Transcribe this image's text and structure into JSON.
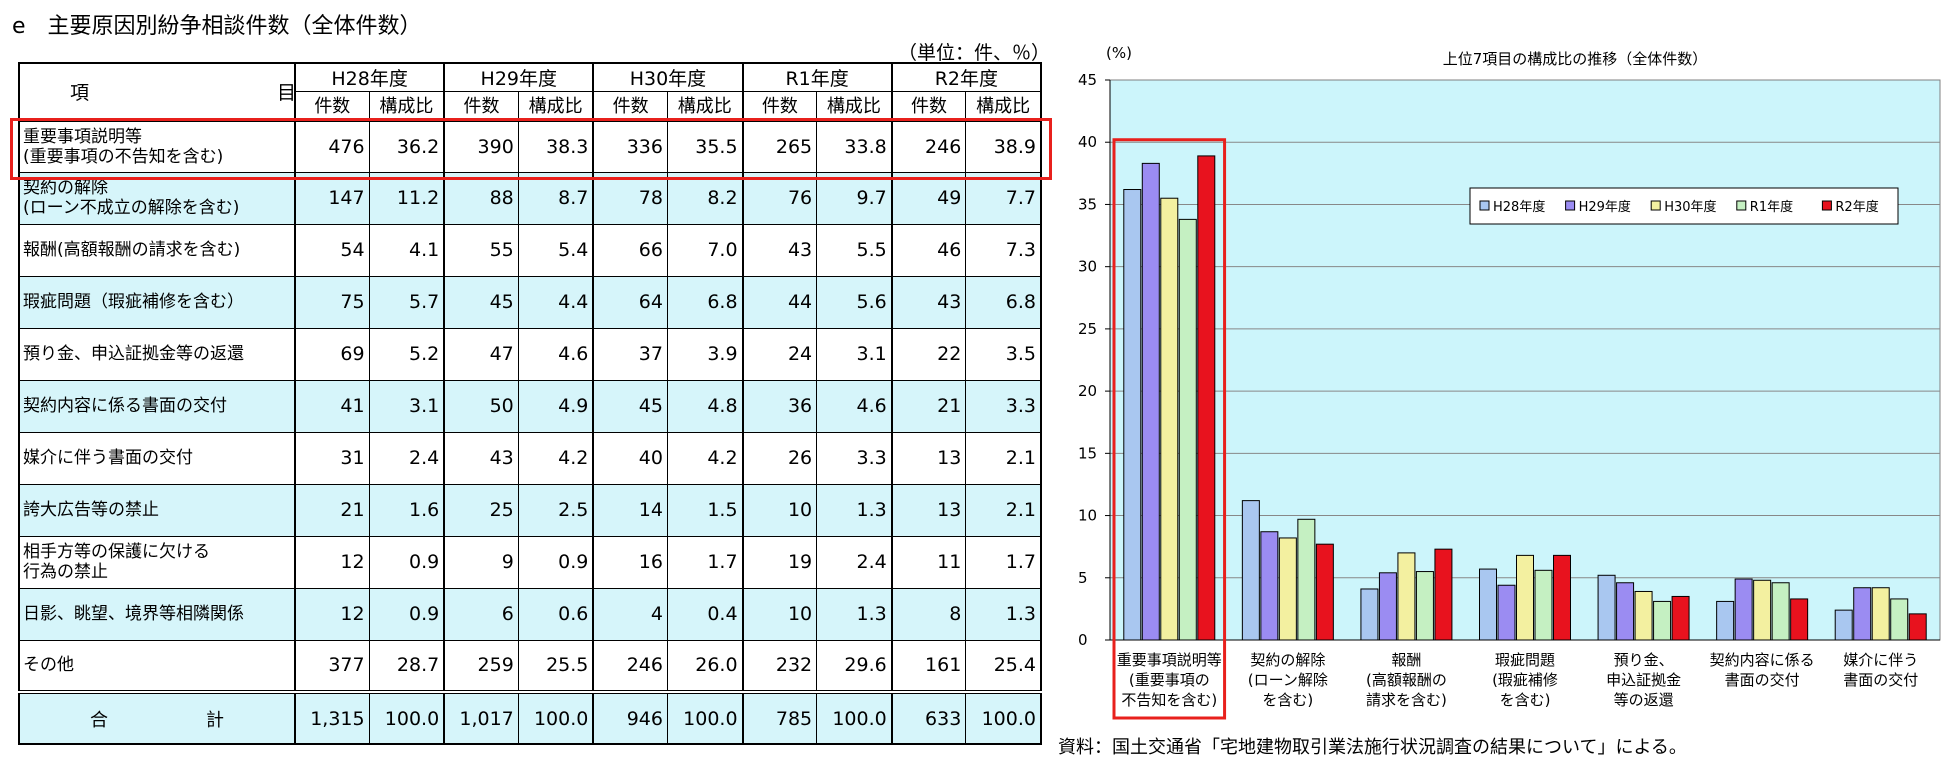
{
  "page": {
    "title": "e　主要原因別紛争相談件数（全体件数）",
    "unit_note": "（単位：件、％）",
    "source_note": "資料：国土交通省「宅地建物取引業法施行状況調査の結果について」による。"
  },
  "table": {
    "item_header": "項　　目",
    "years": [
      "H28年度",
      "H29年度",
      "H30年度",
      "R1年度",
      "R2年度"
    ],
    "sub_headers": {
      "count": "件数",
      "ratio": "構成比"
    },
    "rows": [
      {
        "item": [
          "重要事項説明等",
          "(重要事項の不告知を含む)"
        ],
        "cells": [
          "476",
          "36.2",
          "390",
          "38.3",
          "336",
          "35.5",
          "265",
          "33.8",
          "246",
          "38.9"
        ]
      },
      {
        "item": [
          "契約の解除",
          "(ローン不成立の解除を含む)"
        ],
        "cells": [
          "147",
          "11.2",
          "88",
          "8.7",
          "78",
          "8.2",
          "76",
          "9.7",
          "49",
          "7.7"
        ]
      },
      {
        "item": [
          "報酬(高額報酬の請求を含む)"
        ],
        "cells": [
          "54",
          "4.1",
          "55",
          "5.4",
          "66",
          "7.0",
          "43",
          "5.5",
          "46",
          "7.3"
        ]
      },
      {
        "item": [
          "瑕疵問題（瑕疵補修を含む）"
        ],
        "cells": [
          "75",
          "5.7",
          "45",
          "4.4",
          "64",
          "6.8",
          "44",
          "5.6",
          "43",
          "6.8"
        ]
      },
      {
        "item": [
          "預り金、申込証拠金等の返還"
        ],
        "cells": [
          "69",
          "5.2",
          "47",
          "4.6",
          "37",
          "3.9",
          "24",
          "3.1",
          "22",
          "3.5"
        ]
      },
      {
        "item": [
          "契約内容に係る書面の交付"
        ],
        "cells": [
          "41",
          "3.1",
          "50",
          "4.9",
          "45",
          "4.8",
          "36",
          "4.6",
          "21",
          "3.3"
        ]
      },
      {
        "item": [
          "媒介に伴う書面の交付"
        ],
        "cells": [
          "31",
          "2.4",
          "43",
          "4.2",
          "40",
          "4.2",
          "26",
          "3.3",
          "13",
          "2.1"
        ]
      },
      {
        "item": [
          "誇大広告等の禁止"
        ],
        "cells": [
          "21",
          "1.6",
          "25",
          "2.5",
          "14",
          "1.5",
          "10",
          "1.3",
          "13",
          "2.1"
        ]
      },
      {
        "item": [
          "相手方等の保護に欠ける",
          "行為の禁止"
        ],
        "cells": [
          "12",
          "0.9",
          "9",
          "0.9",
          "16",
          "1.7",
          "19",
          "2.4",
          "11",
          "1.7"
        ]
      },
      {
        "item": [
          "日影、眺望、境界等相隣関係"
        ],
        "cells": [
          "12",
          "0.9",
          "6",
          "0.6",
          "4",
          "0.4",
          "10",
          "1.3",
          "8",
          "1.3"
        ]
      },
      {
        "item": [
          "その他"
        ],
        "cells": [
          "377",
          "28.7",
          "259",
          "25.5",
          "246",
          "26.0",
          "232",
          "29.6",
          "161",
          "25.4"
        ]
      }
    ],
    "total": {
      "label": "合　計",
      "cells": [
        "1,315",
        "100.0",
        "1,017",
        "100.0",
        "946",
        "100.0",
        "785",
        "100.0",
        "633",
        "100.0"
      ]
    }
  },
  "chart_data": {
    "type": "bar",
    "title": "上位7項目の構成比の推移（全体件数）",
    "ylabel": "(%)",
    "ylim": [
      0,
      45
    ],
    "yticks": [
      0,
      5,
      10,
      15,
      20,
      25,
      30,
      35,
      40,
      45
    ],
    "grid": true,
    "legend_position": "top-right",
    "categories": [
      [
        "重要事項説明等",
        "(重要事項の",
        "不告知を含む)"
      ],
      [
        "契約の解除",
        "(ローン解除",
        "を含む)"
      ],
      [
        "報酬",
        "(高額報酬の",
        "請求を含む)"
      ],
      [
        "瑕疵問題",
        "(瑕疵補修",
        "を含む)"
      ],
      [
        "預り金、",
        "申込証拠金",
        "等の返還"
      ],
      [
        "契約内容に係る",
        "書面の交付"
      ],
      [
        "媒介に伴う",
        "書面の交付"
      ]
    ],
    "series": [
      {
        "name": "H28年度",
        "color": "#a9c7f0",
        "values": [
          36.2,
          11.2,
          4.1,
          5.7,
          5.2,
          3.1,
          2.4
        ]
      },
      {
        "name": "H29年度",
        "color": "#9b8cf2",
        "values": [
          38.3,
          8.7,
          5.4,
          4.4,
          4.6,
          4.9,
          4.2
        ]
      },
      {
        "name": "H30年度",
        "color": "#f3f0a0",
        "values": [
          35.5,
          8.2,
          7.0,
          6.8,
          3.9,
          4.8,
          4.2
        ]
      },
      {
        "name": "R1年度",
        "color": "#c5f0c2",
        "values": [
          33.8,
          9.7,
          5.5,
          5.6,
          3.1,
          4.6,
          3.3
        ]
      },
      {
        "name": "R2年度",
        "color": "#e8121e",
        "values": [
          38.9,
          7.7,
          7.3,
          6.8,
          3.5,
          3.3,
          2.1
        ]
      }
    ],
    "colors": {
      "plot_background": "#ccf5fb",
      "highlight": "#e8201c"
    }
  }
}
